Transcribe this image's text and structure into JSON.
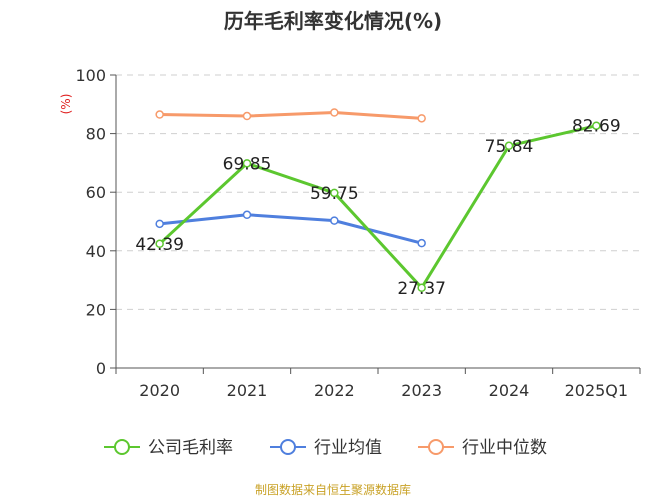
{
  "chart_data": {
    "type": "line",
    "title": "历年毛利率变化情况(%)",
    "ylabel": "(%)",
    "xlabel": "",
    "categories": [
      "2020",
      "2021",
      "2022",
      "2023",
      "2024",
      "2025Q1"
    ],
    "ylim": [
      0,
      100
    ],
    "yticks": [
      0,
      20,
      40,
      60,
      80,
      100
    ],
    "grid": true,
    "legend_position": "bottom",
    "series": [
      {
        "name": "公司毛利率",
        "color": "#5cc72f",
        "values": [
          42.39,
          69.85,
          59.75,
          27.37,
          75.84,
          82.69
        ],
        "labels": [
          "42.39",
          "69.85",
          "59.75",
          "27.37",
          "75.84",
          "82.69"
        ]
      },
      {
        "name": "行业均值",
        "color": "#4f7fde",
        "values": [
          49.2,
          52.3,
          50.3,
          42.6,
          null,
          null
        ]
      },
      {
        "name": "行业中位数",
        "color": "#f79a6a",
        "values": [
          86.5,
          86.0,
          87.2,
          85.2,
          null,
          null
        ]
      }
    ]
  },
  "footer": {
    "source": "制图数据来自恒生聚源数据库"
  }
}
